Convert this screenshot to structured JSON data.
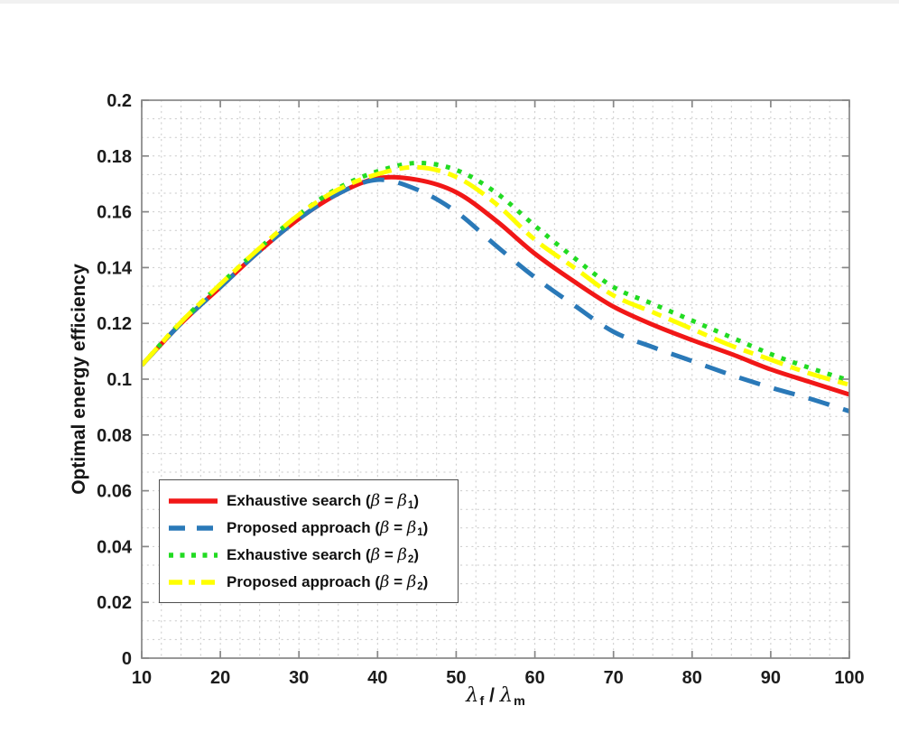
{
  "page": {
    "background": "#ffffff"
  },
  "chart_data": {
    "type": "line",
    "title": "",
    "xlabel": "λ_f / λ_m",
    "ylabel": "Optimal energy efficiency",
    "xlim": [
      10,
      100
    ],
    "ylim": [
      0,
      0.2
    ],
    "xticks": [
      10,
      20,
      30,
      40,
      50,
      60,
      70,
      80,
      90,
      100
    ],
    "yticks": [
      0,
      0.02,
      0.04,
      0.06,
      0.08,
      0.1,
      0.12,
      0.14,
      0.16,
      0.18,
      0.2
    ],
    "grid": "dotted minor grid, both axes",
    "grid_x_step": 2.5,
    "grid_y_step": 0.0066667,
    "legend_position": "lower left",
    "axis_color": "#878787",
    "grid_color": "#c9c9c9",
    "text_color": "#1c1c1c",
    "x": [
      10,
      15,
      20,
      25,
      30,
      35,
      40,
      45,
      50,
      55,
      60,
      65,
      70,
      75,
      80,
      85,
      90,
      95,
      100
    ],
    "series": [
      {
        "label": "Exhaustive search (β = β₁)",
        "color": "#f11717",
        "line_style": "solid",
        "values": [
          0.105,
          0.12,
          0.133,
          0.146,
          0.1575,
          0.1665,
          0.172,
          0.1715,
          0.167,
          0.157,
          0.145,
          0.135,
          0.126,
          0.1195,
          0.114,
          0.109,
          0.1035,
          0.099,
          0.0945
        ]
      },
      {
        "label": "Proposed approach (β = β₁)",
        "color": "#2a79b8",
        "line_style": "dashed",
        "values": [
          0.105,
          0.12,
          0.133,
          0.146,
          0.1575,
          0.1665,
          0.1715,
          0.168,
          0.16,
          0.148,
          0.1365,
          0.1265,
          0.117,
          0.1115,
          0.1065,
          0.1015,
          0.097,
          0.093,
          0.0885
        ]
      },
      {
        "label": "Exhaustive search (β = β₂)",
        "color": "#22db22",
        "line_style": "dotted",
        "values": [
          0.105,
          0.1205,
          0.134,
          0.147,
          0.159,
          0.1685,
          0.1745,
          0.1775,
          0.175,
          0.167,
          0.155,
          0.1435,
          0.133,
          0.127,
          0.121,
          0.115,
          0.109,
          0.104,
          0.0995
        ]
      },
      {
        "label": "Proposed approach (β = β₂)",
        "color": "#ffff00",
        "line_style": "dash-dot",
        "values": [
          0.105,
          0.1205,
          0.134,
          0.147,
          0.159,
          0.168,
          0.1735,
          0.176,
          0.1725,
          0.163,
          0.15,
          0.14,
          0.13,
          0.124,
          0.118,
          0.112,
          0.107,
          0.102,
          0.098
        ]
      }
    ]
  }
}
